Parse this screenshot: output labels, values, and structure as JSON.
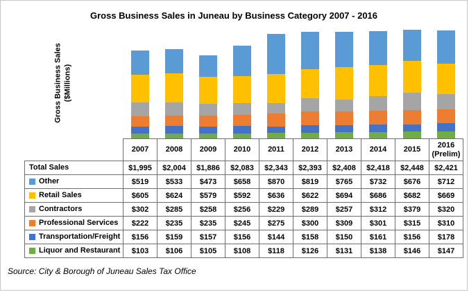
{
  "title": "Gross Business Sales in Juneau by Business Category 2007 - 2016",
  "y_axis_label": "Gross Business Sales\n($Millions)",
  "source": "Source: City & Borough of Juneau Sales Tax Office",
  "chart_data": {
    "type": "bar",
    "stacked": true,
    "title": "Gross Business Sales in Juneau by Business Category 2007 - 2016",
    "xlabel": "",
    "ylabel": "Gross Business Sales ($Millions)",
    "ylim": [
      0,
      2400
    ],
    "grid": false,
    "legend_position": "table-left",
    "value_format": "$#,##0",
    "categories": [
      "2007",
      "2008",
      "2009",
      "2010",
      "2011",
      "2012",
      "2013",
      "2014",
      "2015",
      "2016\n(Prelim)"
    ],
    "total_row": {
      "label": "Total Sales",
      "values": [
        1995,
        2004,
        1886,
        2083,
        2343,
        2393,
        2408,
        2418,
        2448,
        2421
      ]
    },
    "series": [
      {
        "name": "Other",
        "color": "#5B9BD5",
        "values": [
          519,
          533,
          473,
          658,
          870,
          819,
          765,
          732,
          676,
          712
        ]
      },
      {
        "name": "Retail Sales",
        "color": "#FFC000",
        "values": [
          605,
          624,
          579,
          592,
          636,
          622,
          694,
          686,
          682,
          669
        ]
      },
      {
        "name": "Contractors",
        "color": "#A5A5A5",
        "values": [
          302,
          285,
          258,
          256,
          229,
          289,
          257,
          312,
          379,
          320
        ]
      },
      {
        "name": "Professional Services",
        "color": "#ED7D31",
        "values": [
          222,
          235,
          235,
          245,
          275,
          300,
          309,
          301,
          315,
          310
        ]
      },
      {
        "name": "Transportation/Freight",
        "color": "#4472C4",
        "values": [
          156,
          159,
          157,
          156,
          144,
          158,
          150,
          161,
          156,
          178
        ]
      },
      {
        "name": "Liquor and Restaurant",
        "color": "#70AD47",
        "values": [
          103,
          106,
          105,
          108,
          118,
          126,
          131,
          138,
          146,
          147
        ]
      }
    ],
    "stack_order_bottom_to_top": [
      "Liquor and Restaurant",
      "Transportation/Freight",
      "Professional Services",
      "Contractors",
      "Retail Sales",
      "Other"
    ]
  }
}
